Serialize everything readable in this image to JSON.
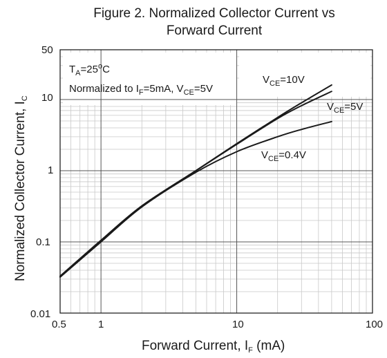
{
  "chart_data": {
    "type": "line",
    "title": {
      "line1": "Figure 2. Normalized Collector Current vs",
      "line2": "Forward Current"
    },
    "xlabel": {
      "main": "Forward Current, I",
      "sub": "F",
      "unit": " (mA)"
    },
    "ylabel": {
      "main": "Normalized Collector Current, I",
      "sub": "C"
    },
    "x_scale": "log",
    "y_scale": "log",
    "xlim": [
      0.5,
      100
    ],
    "ylim": [
      0.01,
      50
    ],
    "x_ticks": [
      "0.5",
      "1",
      "10",
      "100"
    ],
    "y_ticks": [
      "50",
      "10",
      "1",
      "0.1",
      "0.01"
    ],
    "grid": true,
    "annotations": {
      "ta": {
        "t": "T",
        "s": "A",
        "rest": "=25",
        "sup": "o",
        "unit": "C"
      },
      "norm": {
        "pre": "Normalized to I",
        "s1": "F",
        "mid": "=5mA, V",
        "s2": "CE",
        "post": "=5V"
      }
    },
    "series": [
      {
        "label": {
          "pre": "V",
          "sub": "CE",
          "post": "=10V"
        },
        "x": [
          0.5,
          1,
          2,
          5,
          10,
          20,
          30,
          50
        ],
        "y": [
          0.033,
          0.105,
          0.32,
          1.0,
          2.4,
          5.6,
          9.0,
          16.0
        ]
      },
      {
        "label": {
          "pre": "V",
          "sub": "CE",
          "post": "=5V"
        },
        "x": [
          0.5,
          1,
          2,
          5,
          10,
          20,
          30,
          50
        ],
        "y": [
          0.033,
          0.105,
          0.32,
          1.0,
          2.35,
          5.4,
          8.2,
          13.0
        ]
      },
      {
        "label": {
          "pre": "V",
          "sub": "CE",
          "post": "=0.4V"
        },
        "x": [
          0.5,
          1,
          2,
          5,
          10,
          20,
          30,
          50
        ],
        "y": [
          0.032,
          0.1,
          0.31,
          0.95,
          1.85,
          3.0,
          3.8,
          4.9
        ]
      }
    ]
  }
}
